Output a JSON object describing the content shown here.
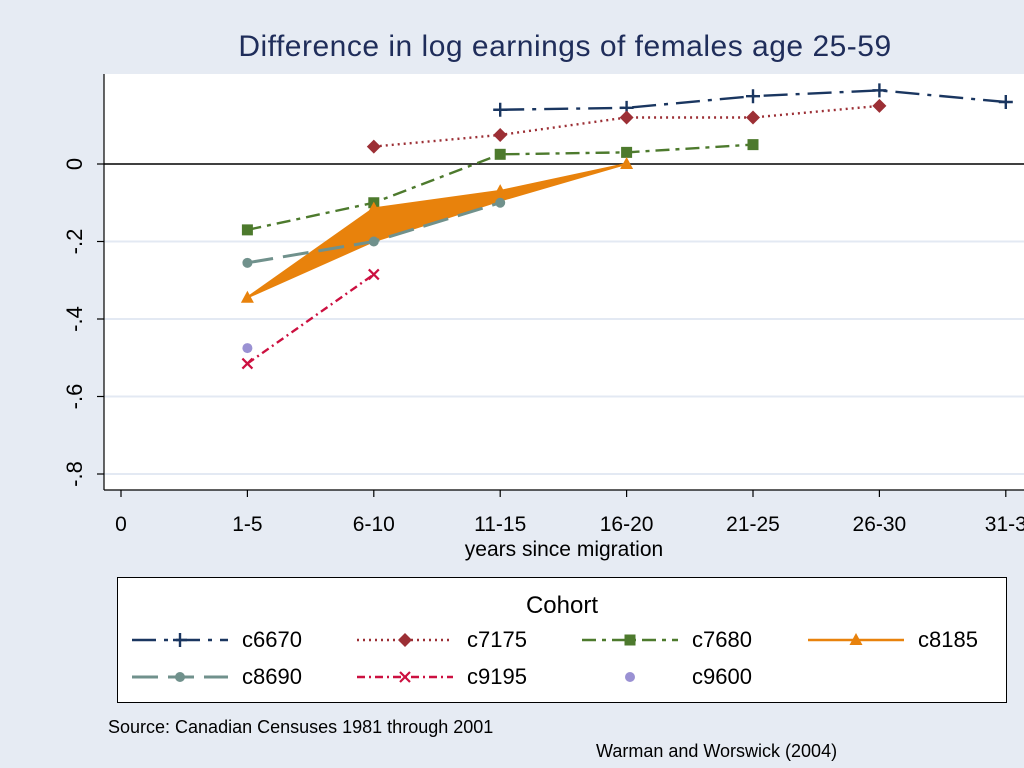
{
  "chart_data": {
    "type": "line",
    "title": "Difference in log earnings of females age 25-59",
    "xlabel": "years since migration",
    "ylabel": "",
    "categories": [
      "0",
      "1-5",
      "6-10",
      "11-15",
      "16-20",
      "21-25",
      "26-30",
      "31-3"
    ],
    "yticks": [
      0,
      -0.2,
      -0.4,
      -0.6,
      -0.8
    ],
    "ytick_labels": [
      "0",
      "-.2",
      "-.4",
      "-.6",
      "-.8"
    ],
    "ylim": [
      -0.84,
      0.23
    ],
    "reference_line": 0,
    "grid": true,
    "legend_title": "Cohort",
    "legend_position": "bottom",
    "series": [
      {
        "name": "c6670",
        "x": [
          3,
          4,
          5,
          6,
          7
        ],
        "values": [
          0.14,
          0.145,
          0.175,
          0.19,
          0.16
        ],
        "color": "#1a3660",
        "dash": "24 8 4 8",
        "marker": "plus"
      },
      {
        "name": "c7175",
        "x": [
          2,
          3,
          4,
          5,
          6
        ],
        "values": [
          0.045,
          0.075,
          0.12,
          0.12,
          0.15
        ],
        "color": "#9c2f35",
        "dash": "2 4",
        "marker": "diamond"
      },
      {
        "name": "c7680",
        "x": [
          1,
          2,
          3,
          4,
          5
        ],
        "values": [
          -0.17,
          -0.1,
          0.025,
          0.03,
          0.05
        ],
        "color": "#4d7a2d",
        "dash": "14 6 4 6",
        "marker": "square"
      },
      {
        "name": "c8185",
        "x": [
          1,
          2,
          3,
          4
        ],
        "values": [
          -0.345,
          -0.115,
          -0.07,
          0.0
        ],
        "values_lower": [
          -0.345,
          -0.2,
          -0.095,
          0.0
        ],
        "color": "#e8820c",
        "dash": "",
        "marker": "triangle",
        "band": true
      },
      {
        "name": "c8690",
        "x": [
          1,
          2,
          3
        ],
        "values": [
          -0.255,
          -0.2,
          -0.1
        ],
        "color": "#70918c",
        "dash": "26 10",
        "marker": "circle"
      },
      {
        "name": "c9195",
        "x": [
          1,
          2
        ],
        "values": [
          -0.515,
          -0.285
        ],
        "color": "#cc1040",
        "dash": "8 4 2 4",
        "marker": "x"
      },
      {
        "name": "c9600",
        "x": [
          1
        ],
        "values": [
          -0.475
        ],
        "color": "#9a91d3",
        "dash": "",
        "marker": "circle"
      }
    ]
  },
  "source": "Source: Canadian Censuses 1981 through 2001",
  "credit": "Warman and Worswick (2004)"
}
